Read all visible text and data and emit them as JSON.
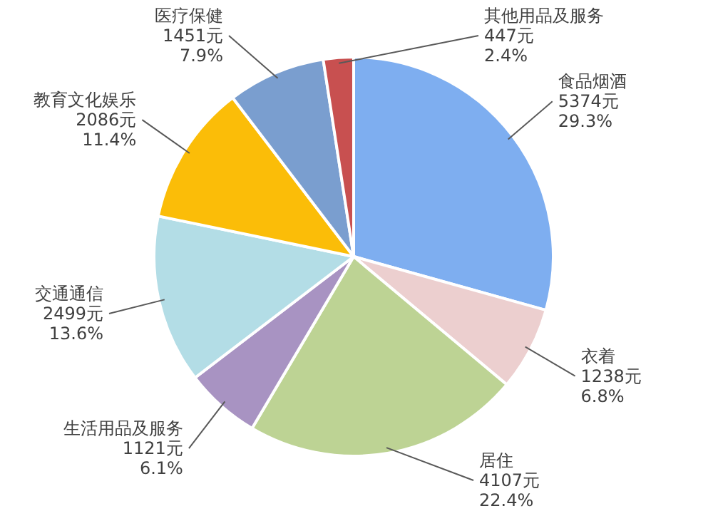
{
  "chart_data": {
    "type": "pie",
    "categories": [
      "食品烟酒",
      "衣着",
      "居住",
      "生活用品及服务",
      "交通通信",
      "教育文化娱乐",
      "医疗保健",
      "其他用品及服务"
    ],
    "values": [
      5374,
      1238,
      4107,
      1121,
      2499,
      2086,
      1451,
      447
    ],
    "value_labels": [
      "5374元\n29.3%",
      "1238元\n6.8%",
      "4107元\n22.4%",
      "1121元\n6.1%",
      "2499元\n13.6%",
      "2086元\n11.4%",
      "1451元\n7.9%",
      "447元\n2.4%"
    ],
    "colors": [
      "#7eaef0",
      "#eccfcf",
      "#bdd394",
      "#a893c2",
      "#b3dde6",
      "#fbbd08",
      "#7a9ecf",
      "#c85050"
    ]
  }
}
